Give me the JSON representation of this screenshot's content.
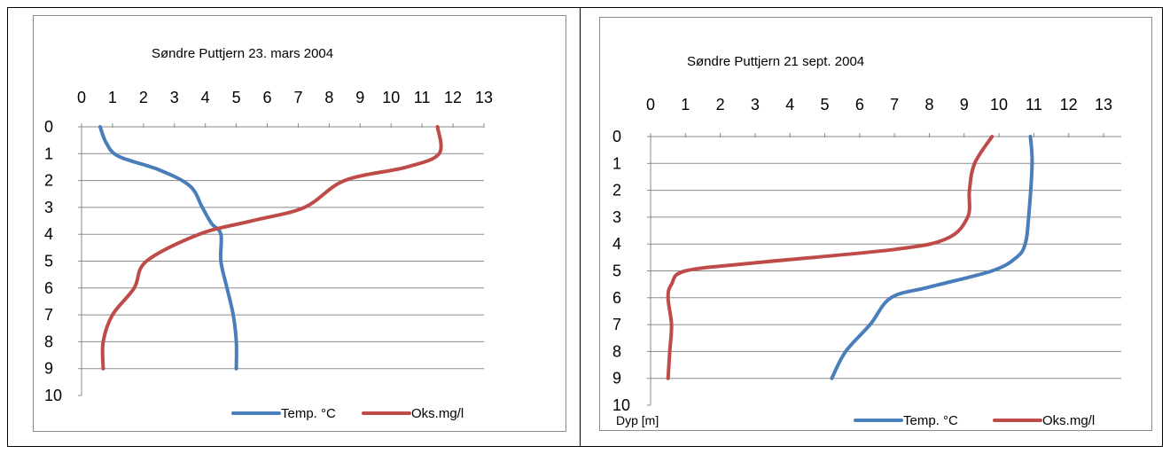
{
  "chart_data": [
    {
      "type": "line",
      "title": "Søndre Puttjern 23. mars 2004",
      "xlabel": "",
      "ylabel": "",
      "x_axis_position": "top",
      "y_axis_inverted": true,
      "xlim": [
        0,
        13
      ],
      "ylim": [
        0,
        10
      ],
      "x_ticks": [
        "0",
        "1",
        "2",
        "3",
        "4",
        "5",
        "6",
        "7",
        "8",
        "9",
        "10",
        "11",
        "12",
        "13"
      ],
      "y_ticks": [
        "0",
        "1",
        "2",
        "3",
        "4",
        "5",
        "6",
        "7",
        "8",
        "9",
        "10"
      ],
      "grid": "horizontal",
      "legend_position": "bottom",
      "series": [
        {
          "name": "Temp. °C",
          "color": "#4a7ebb",
          "points": [
            [
              0.6,
              0
            ],
            [
              0.8,
              0.6
            ],
            [
              1.2,
              1.1
            ],
            [
              2.5,
              1.6
            ],
            [
              3.5,
              2.2
            ],
            [
              3.9,
              3
            ],
            [
              4.2,
              3.6
            ],
            [
              4.5,
              4
            ],
            [
              4.5,
              5
            ],
            [
              4.7,
              6
            ],
            [
              4.9,
              7
            ],
            [
              5.0,
              8
            ],
            [
              5.0,
              9
            ]
          ]
        },
        {
          "name": "Oks.mg/l",
          "color": "#be4b48",
          "points": [
            [
              11.5,
              0
            ],
            [
              11.55,
              1
            ],
            [
              10.5,
              1.5
            ],
            [
              8.5,
              2
            ],
            [
              7.2,
              3
            ],
            [
              5.5,
              3.5
            ],
            [
              3.8,
              4
            ],
            [
              2.1,
              5
            ],
            [
              1.7,
              6
            ],
            [
              1.0,
              7
            ],
            [
              0.7,
              8
            ],
            [
              0.7,
              9
            ]
          ]
        }
      ]
    },
    {
      "type": "line",
      "title": "Søndre Puttjern  21 sept. 2004",
      "xlabel": "",
      "ylabel": "Dyp  [m]",
      "x_axis_position": "top",
      "y_axis_inverted": true,
      "xlim": [
        0,
        13
      ],
      "ylim": [
        0,
        10
      ],
      "x_ticks": [
        "0",
        "1",
        "2",
        "3",
        "4",
        "5",
        "6",
        "7",
        "8",
        "9",
        "10",
        "11",
        "12",
        "13"
      ],
      "y_ticks": [
        "0",
        "1",
        "2",
        "3",
        "4",
        "5",
        "6",
        "7",
        "8",
        "9",
        "10"
      ],
      "grid": "horizontal",
      "legend_position": "bottom",
      "series": [
        {
          "name": "Temp. °C",
          "color": "#4a7ebb",
          "points": [
            [
              10.9,
              0
            ],
            [
              10.95,
              1
            ],
            [
              10.85,
              3
            ],
            [
              10.75,
              4
            ],
            [
              10.5,
              4.5
            ],
            [
              9.8,
              5
            ],
            [
              8.0,
              5.6
            ],
            [
              6.9,
              6
            ],
            [
              6.3,
              7
            ],
            [
              5.6,
              8
            ],
            [
              5.2,
              9
            ]
          ]
        },
        {
          "name": "Oks.mg/l",
          "color": "#be4b48",
          "points": [
            [
              9.8,
              0
            ],
            [
              9.3,
              1
            ],
            [
              9.15,
              2
            ],
            [
              9.1,
              3
            ],
            [
              8.5,
              3.8
            ],
            [
              7,
              4.2
            ],
            [
              3,
              4.7
            ],
            [
              1,
              5
            ],
            [
              0.6,
              5.5
            ],
            [
              0.5,
              6
            ],
            [
              0.6,
              7
            ],
            [
              0.55,
              8
            ],
            [
              0.5,
              9
            ]
          ]
        }
      ]
    }
  ]
}
